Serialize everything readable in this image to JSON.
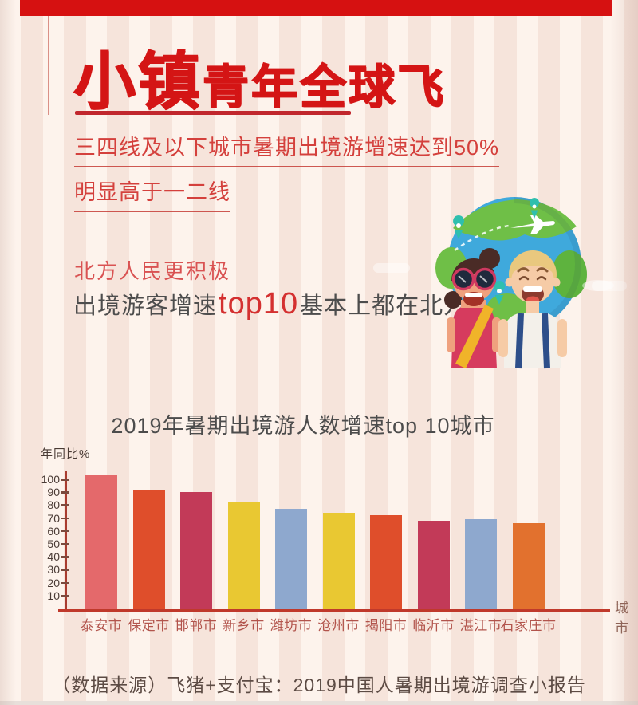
{
  "header": {
    "title_emphasis": "小镇",
    "title_rest": "青年全球飞"
  },
  "subtitle": {
    "line1": "三四线及以下城市暑期出境游增速达到50%",
    "line2": "明显高于一二线"
  },
  "highlight": {
    "line1": "北方人民更积极",
    "line2_pre": "出境游客增速",
    "line2_em": "top10",
    "line2_post": "基本上都在北方"
  },
  "chart_data": {
    "type": "bar",
    "title": "2019年暑期出境游人数增速top 10城市",
    "ylabel": "年同比%",
    "xlabel": "城市",
    "categories": [
      "泰安市",
      "保定市",
      "邯郸市",
      "新乡市",
      "潍坊市",
      "沧州市",
      "揭阳市",
      "临沂市",
      "湛江市",
      "石家庄市"
    ],
    "values": [
      103,
      92,
      90,
      83,
      77,
      74,
      72,
      68,
      69,
      66
    ],
    "bar_colors": [
      "#e4696b",
      "#df4e2b",
      "#c23a58",
      "#e9c832",
      "#8ea8ce",
      "#e9c832",
      "#df4e2b",
      "#c23a58",
      "#8ea8ce",
      "#e2712e"
    ],
    "yticks": [
      10,
      20,
      30,
      40,
      50,
      60,
      70,
      80,
      90,
      100
    ],
    "ylim": [
      0,
      110
    ],
    "grid": false,
    "legend": null,
    "axis_color": "#c0392b"
  },
  "source_line": "（数据来源）飞猪+支付宝：2019中国人暑期出境游调查小报告",
  "colors": {
    "accent_red": "#d41515",
    "top_bar_red": "#d61111",
    "subtitle_red": "#d4403c",
    "body_dark": "#4d4d4d",
    "tick_text": "#4a3b35",
    "city_label": "#b2544c",
    "source_text": "#5c4b44"
  }
}
